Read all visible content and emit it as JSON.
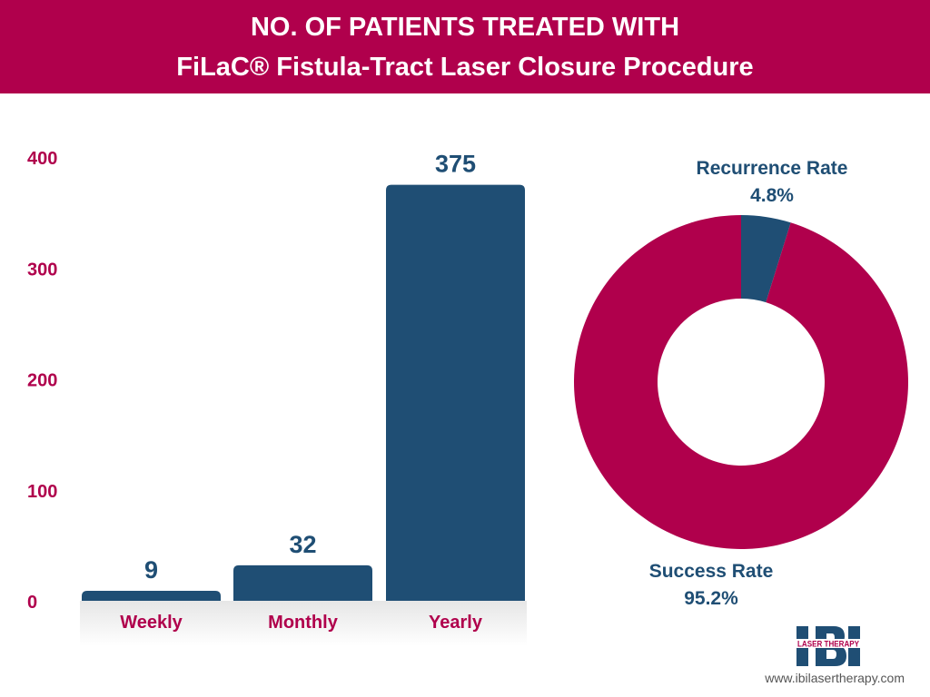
{
  "header": {
    "line1": "NO. OF PATIENTS TREATED WITH",
    "line2": "FiLaC® Fistula-Tract Laser Closure Procedure"
  },
  "chart_data": [
    {
      "type": "bar",
      "categories": [
        "Weekly",
        "Monthly",
        "Yearly"
      ],
      "values": [
        9,
        32,
        375
      ],
      "data_labels": [
        "9",
        "32",
        "375"
      ],
      "ylim": [
        0,
        400
      ],
      "yticks": [
        "0",
        "100",
        "200",
        "300",
        "400"
      ],
      "grid": false,
      "bar_color": "#1f4e74",
      "tick_color": "#b0004c"
    },
    {
      "type": "pie",
      "style": "donut",
      "slices": [
        {
          "label": "Recurrence Rate",
          "value": 4.8,
          "value_label": "4.8%",
          "color": "#1f4e74"
        },
        {
          "label": "Success Rate",
          "value": 95.2,
          "value_label": "95.2%",
          "color": "#b0004c"
        }
      ]
    }
  ],
  "logo": {
    "text": "IBI",
    "subtext": "LASER THERAPY"
  },
  "footer": {
    "url": "www.ibilasertherapy.com"
  }
}
